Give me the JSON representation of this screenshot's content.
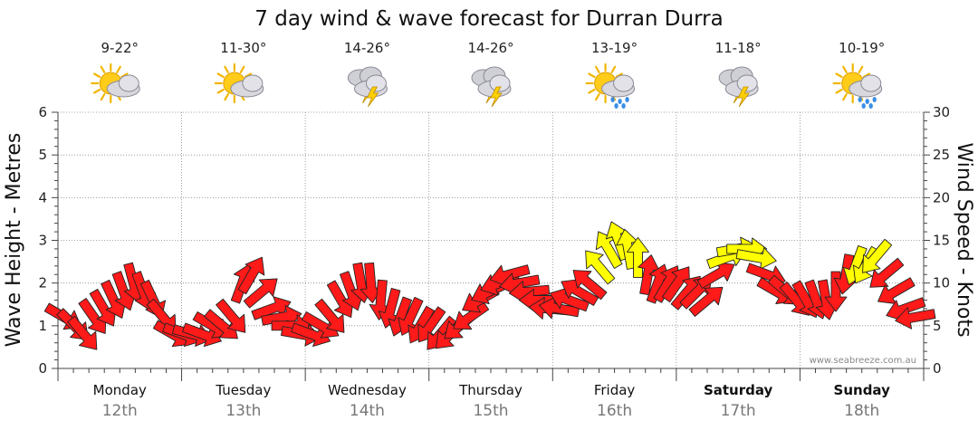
{
  "chart_data": {
    "type": "line",
    "title": "7 day wind & wave forecast for Durran Durra",
    "ylabel_left": "Wave Height - Metres",
    "ylabel_right": "Wind Speed - Knots",
    "ylim_left": [
      0,
      6
    ],
    "ylim_right": [
      0,
      30
    ],
    "yticks_left": [
      "0",
      "1",
      "2",
      "3",
      "4",
      "5",
      "6"
    ],
    "yticks_right": [
      "0",
      "5",
      "10",
      "15",
      "20",
      "25",
      "30"
    ],
    "credit": "www.seabreeze.com.au",
    "days": [
      {
        "name": "Monday",
        "date": "12th",
        "temp": "9-22°",
        "weather": "partly-cloudy",
        "bold": false
      },
      {
        "name": "Tuesday",
        "date": "13th",
        "temp": "11-30°",
        "weather": "partly-cloudy",
        "bold": false
      },
      {
        "name": "Wednesday",
        "date": "14th",
        "temp": "14-26°",
        "weather": "storm",
        "bold": false
      },
      {
        "name": "Thursday",
        "date": "15th",
        "temp": "14-26°",
        "weather": "storm",
        "bold": false
      },
      {
        "name": "Friday",
        "date": "16th",
        "temp": "13-19°",
        "weather": "sun-showers",
        "bold": false
      },
      {
        "name": "Saturday",
        "date": "17th",
        "temp": "11-18°",
        "weather": "storm",
        "bold": true
      },
      {
        "name": "Sunday",
        "date": "18th",
        "temp": "10-19°",
        "weather": "sun-showers",
        "bold": true
      }
    ],
    "colors": {
      "low_wind": "#ff1a1a",
      "mid_wind": "#ffff00",
      "outline": "#222222",
      "grid": "#888888"
    },
    "wind_series": {
      "name": "Wind",
      "x_days": [
        0.05,
        0.13,
        0.21,
        0.29,
        0.37,
        0.45,
        0.53,
        0.61,
        0.69,
        0.77,
        0.85,
        0.93,
        1.01,
        1.09,
        1.17,
        1.25,
        1.33,
        1.41,
        1.49,
        1.57,
        1.65,
        1.73,
        1.81,
        1.89,
        1.97,
        2.05,
        2.13,
        2.21,
        2.29,
        2.37,
        2.45,
        2.53,
        2.61,
        2.69,
        2.77,
        2.85,
        2.93,
        3.01,
        3.09,
        3.17,
        3.25,
        3.33,
        3.41,
        3.49,
        3.57,
        3.65,
        3.73,
        3.81,
        3.89,
        3.97,
        4.05,
        4.13,
        4.21,
        4.29,
        4.37,
        4.45,
        4.53,
        4.61,
        4.69,
        4.77,
        4.85,
        4.93,
        5.01,
        5.09,
        5.17,
        5.25,
        5.33,
        5.41,
        5.49,
        5.57,
        5.65,
        5.73,
        5.81,
        5.89,
        5.97,
        6.05,
        6.13,
        6.21,
        6.29,
        6.37,
        6.45,
        6.53,
        6.61,
        6.69,
        6.77,
        6.85,
        6.93
      ],
      "knots": [
        6,
        5,
        4,
        6,
        7,
        8,
        9,
        10,
        9,
        8,
        6,
        4,
        4,
        4,
        4,
        5,
        5,
        6,
        10,
        11,
        9,
        7,
        6,
        5,
        4,
        4,
        5,
        6,
        8,
        9,
        10,
        10,
        8,
        7,
        6,
        6,
        5,
        5,
        4,
        4,
        5,
        6,
        8,
        9,
        10,
        11,
        10,
        9,
        8,
        7,
        7,
        8,
        9,
        10,
        12,
        14,
        15,
        14,
        13,
        11,
        10,
        10,
        10,
        9,
        9,
        8,
        11,
        13,
        14,
        14,
        13,
        11,
        9,
        9,
        8,
        8,
        8,
        8,
        9,
        11,
        12,
        12,
        13,
        11,
        9,
        7,
        6
      ],
      "dir_deg": [
        300,
        315,
        320,
        325,
        330,
        335,
        340,
        345,
        340,
        335,
        320,
        300,
        290,
        285,
        290,
        300,
        310,
        320,
        200,
        210,
        230,
        250,
        260,
        270,
        280,
        290,
        300,
        320,
        330,
        340,
        350,
        355,
        5,
        15,
        20,
        25,
        30,
        35,
        40,
        45,
        50,
        55,
        60,
        65,
        70,
        75,
        80,
        85,
        90,
        95,
        100,
        110,
        120,
        130,
        140,
        150,
        160,
        170,
        180,
        190,
        200,
        210,
        215,
        220,
        225,
        230,
        240,
        250,
        260,
        270,
        280,
        290,
        300,
        310,
        320,
        330,
        340,
        350,
        0,
        10,
        20,
        30,
        40,
        50,
        60,
        70,
        80
      ]
    }
  }
}
